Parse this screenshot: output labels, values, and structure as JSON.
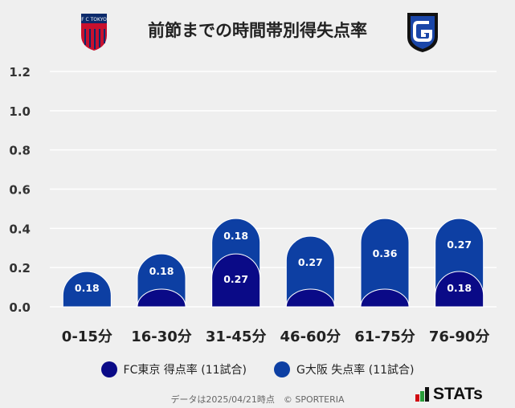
{
  "header": {
    "title": "前節までの時間帯別得失点率",
    "left_logo_text": "F C TOKYO"
  },
  "chart_data": {
    "type": "bar",
    "title": "前節までの時間帯別得失点率",
    "categories": [
      "0-15分",
      "16-30分",
      "31-45分",
      "46-60分",
      "61-75分",
      "76-90分"
    ],
    "series": [
      {
        "name": "FC東京 得点率 (11試合)",
        "color": "#0a0a87",
        "values": [
          0.0,
          0.09,
          0.27,
          0.09,
          0.09,
          0.18
        ],
        "labels": [
          "",
          "",
          "0.27",
          "",
          "",
          "0.18"
        ]
      },
      {
        "name": "G大阪 失点率 (11試合)",
        "color": "#0d3fa3",
        "values": [
          0.18,
          0.18,
          0.18,
          0.27,
          0.36,
          0.27
        ],
        "labels": [
          "0.18",
          "0.18",
          "0.18",
          "0.27",
          "0.36",
          "0.27"
        ]
      }
    ],
    "ylim": [
      0,
      1.2
    ],
    "yticks": [
      "0.0",
      "0.2",
      "0.4",
      "0.6",
      "0.8",
      "1.0",
      "1.2"
    ],
    "grid": true,
    "legend": "bottom"
  },
  "legend": {
    "items": [
      {
        "label": "FC東京 得点率 (11試合)",
        "color": "#0a0a87"
      },
      {
        "label": "G大阪 失点率 (11試合)",
        "color": "#0d3fa3"
      }
    ]
  },
  "footer": {
    "note": "データは2025/04/21時点　© SPORTERIA",
    "brand": "STATs"
  }
}
